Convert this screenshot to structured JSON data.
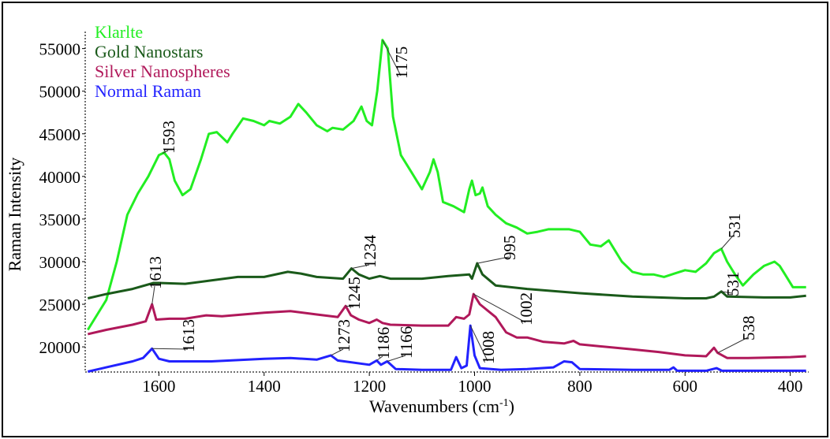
{
  "chart_data": {
    "type": "line",
    "xlabel": "Wavenumbers (cm-1)",
    "xlabel_main": "Wavenumbers (cm",
    "xlabel_sup": "-1",
    "xlabel_close": ")",
    "ylabel": "Raman Intensity",
    "xlim": [
      1740,
      365
    ],
    "ylim": [
      17050,
      57000
    ],
    "x_reversed": true,
    "grid": false,
    "legend_position": "top-left",
    "x_ticks": [
      1600,
      1400,
      1200,
      1000,
      800,
      600,
      400
    ],
    "y_ticks": [
      20000,
      25000,
      30000,
      35000,
      40000,
      45000,
      50000,
      55000
    ],
    "series": [
      {
        "name": "Klarlte",
        "color": "#22ee22",
        "x": [
          1735,
          1700,
          1680,
          1660,
          1640,
          1620,
          1600,
          1590,
          1580,
          1570,
          1555,
          1540,
          1520,
          1505,
          1490,
          1470,
          1460,
          1440,
          1420,
          1400,
          1390,
          1370,
          1350,
          1335,
          1320,
          1300,
          1280,
          1270,
          1250,
          1230,
          1215,
          1205,
          1195,
          1185,
          1175,
          1165,
          1155,
          1140,
          1120,
          1100,
          1085,
          1078,
          1070,
          1060,
          1040,
          1020,
          1010,
          1005,
          998,
          990,
          985,
          975,
          960,
          940,
          920,
          900,
          880,
          860,
          820,
          800,
          780,
          760,
          745,
          735,
          720,
          700,
          680,
          660,
          640,
          620,
          600,
          580,
          560,
          545,
          531,
          520,
          505,
          490,
          470,
          450,
          430,
          420,
          410,
          395,
          370
        ],
        "y": [
          22000,
          25500,
          30000,
          35500,
          38000,
          40000,
          42500,
          42800,
          42000,
          39500,
          37800,
          38500,
          42000,
          45000,
          45200,
          44000,
          45000,
          46800,
          46500,
          46000,
          46500,
          46200,
          47000,
          48500,
          47500,
          46000,
          45300,
          45700,
          45500,
          46500,
          48200,
          46500,
          46000,
          50000,
          56000,
          55000,
          47000,
          42500,
          40500,
          38500,
          40500,
          42000,
          40500,
          37000,
          36500,
          35800,
          38500,
          39500,
          37800,
          38000,
          38700,
          36500,
          35500,
          34500,
          34000,
          33300,
          33500,
          33800,
          33800,
          33500,
          32000,
          31800,
          32500,
          31500,
          30000,
          28800,
          28500,
          28500,
          28200,
          28600,
          29000,
          28800,
          29800,
          31000,
          31500,
          30000,
          28500,
          27200,
          28500,
          29500,
          30000,
          29500,
          28500,
          27000,
          27000
        ]
      },
      {
        "name": "Gold Nanostars",
        "color": "#1a5a1a",
        "x": [
          1735,
          1700,
          1650,
          1610,
          1600,
          1550,
          1500,
          1450,
          1400,
          1355,
          1330,
          1300,
          1250,
          1234,
          1220,
          1200,
          1180,
          1160,
          1100,
          1050,
          1010,
          1005,
          995,
          985,
          960,
          900,
          800,
          700,
          600,
          560,
          545,
          531,
          520,
          450,
          400,
          370
        ],
        "y": [
          25700,
          26200,
          26800,
          27500,
          27500,
          27400,
          27800,
          28200,
          28200,
          28800,
          28600,
          28200,
          28000,
          29200,
          28500,
          28000,
          28300,
          28000,
          28000,
          28300,
          28500,
          28000,
          29800,
          28500,
          27200,
          26800,
          26300,
          25900,
          25700,
          25700,
          25900,
          26500,
          25900,
          25800,
          25800,
          26000
        ]
      },
      {
        "name": "Silver Nanospheres",
        "color": "#b0185a",
        "x": [
          1735,
          1700,
          1650,
          1625,
          1613,
          1605,
          1580,
          1550,
          1510,
          1480,
          1400,
          1350,
          1300,
          1260,
          1245,
          1235,
          1220,
          1200,
          1186,
          1175,
          1160,
          1100,
          1050,
          1035,
          1020,
          1010,
          1002,
          990,
          960,
          940,
          920,
          900,
          870,
          830,
          812,
          800,
          700,
          650,
          600,
          560,
          545,
          538,
          520,
          480,
          400,
          370
        ],
        "y": [
          21500,
          22000,
          22600,
          23000,
          25000,
          23200,
          23300,
          23300,
          23700,
          23600,
          24000,
          24200,
          23800,
          23500,
          24800,
          23700,
          23200,
          22800,
          23200,
          22800,
          22600,
          22500,
          22500,
          23500,
          23300,
          23800,
          26200,
          25000,
          23500,
          21700,
          21100,
          21100,
          20600,
          20400,
          20700,
          20300,
          19700,
          19400,
          19000,
          18900,
          19900,
          19300,
          18700,
          18700,
          18800,
          18900
        ]
      },
      {
        "name": "Normal Raman",
        "color": "#2222ff",
        "x": [
          1735,
          1700,
          1650,
          1630,
          1613,
          1600,
          1580,
          1500,
          1400,
          1350,
          1300,
          1273,
          1260,
          1200,
          1186,
          1178,
          1166,
          1150,
          1100,
          1045,
          1035,
          1025,
          1015,
          1008,
          1000,
          990,
          950,
          900,
          850,
          830,
          815,
          800,
          700,
          630,
          622,
          615,
          560,
          540,
          530,
          400,
          370
        ],
        "y": [
          17100,
          17600,
          18300,
          18700,
          19800,
          18600,
          18300,
          18300,
          18600,
          18700,
          18500,
          19000,
          18400,
          17900,
          18400,
          17900,
          18300,
          17400,
          17300,
          17300,
          18800,
          17500,
          17800,
          22500,
          19000,
          17500,
          17300,
          17400,
          17600,
          18300,
          18200,
          17400,
          17300,
          17300,
          17600,
          17200,
          17200,
          17500,
          17200,
          17200,
          17200
        ]
      }
    ],
    "annotations": [
      {
        "label": "1593",
        "series": 0,
        "x": 1593
      },
      {
        "label": "1175",
        "series": 0,
        "x": 1175
      },
      {
        "label": "531",
        "series": 0,
        "x": 531
      },
      {
        "label": "1613",
        "series": 2,
        "x": 1613
      },
      {
        "label": "1234",
        "series": 1,
        "x": 1234
      },
      {
        "label": "995",
        "series": 1,
        "x": 995
      },
      {
        "label": "531",
        "series": 1,
        "x": 531
      },
      {
        "label": "1245",
        "series": 2,
        "x": 1245
      },
      {
        "label": "1002",
        "series": 2,
        "x": 1002
      },
      {
        "label": "538",
        "series": 2,
        "x": 538
      },
      {
        "label": "1613",
        "series": 3,
        "x": 1613
      },
      {
        "label": "1273",
        "series": 3,
        "x": 1273
      },
      {
        "label": "1186",
        "series": 3,
        "x": 1186
      },
      {
        "label": "1166",
        "series": 3,
        "x": 1166
      },
      {
        "label": "1008",
        "series": 3,
        "x": 1008
      }
    ]
  }
}
